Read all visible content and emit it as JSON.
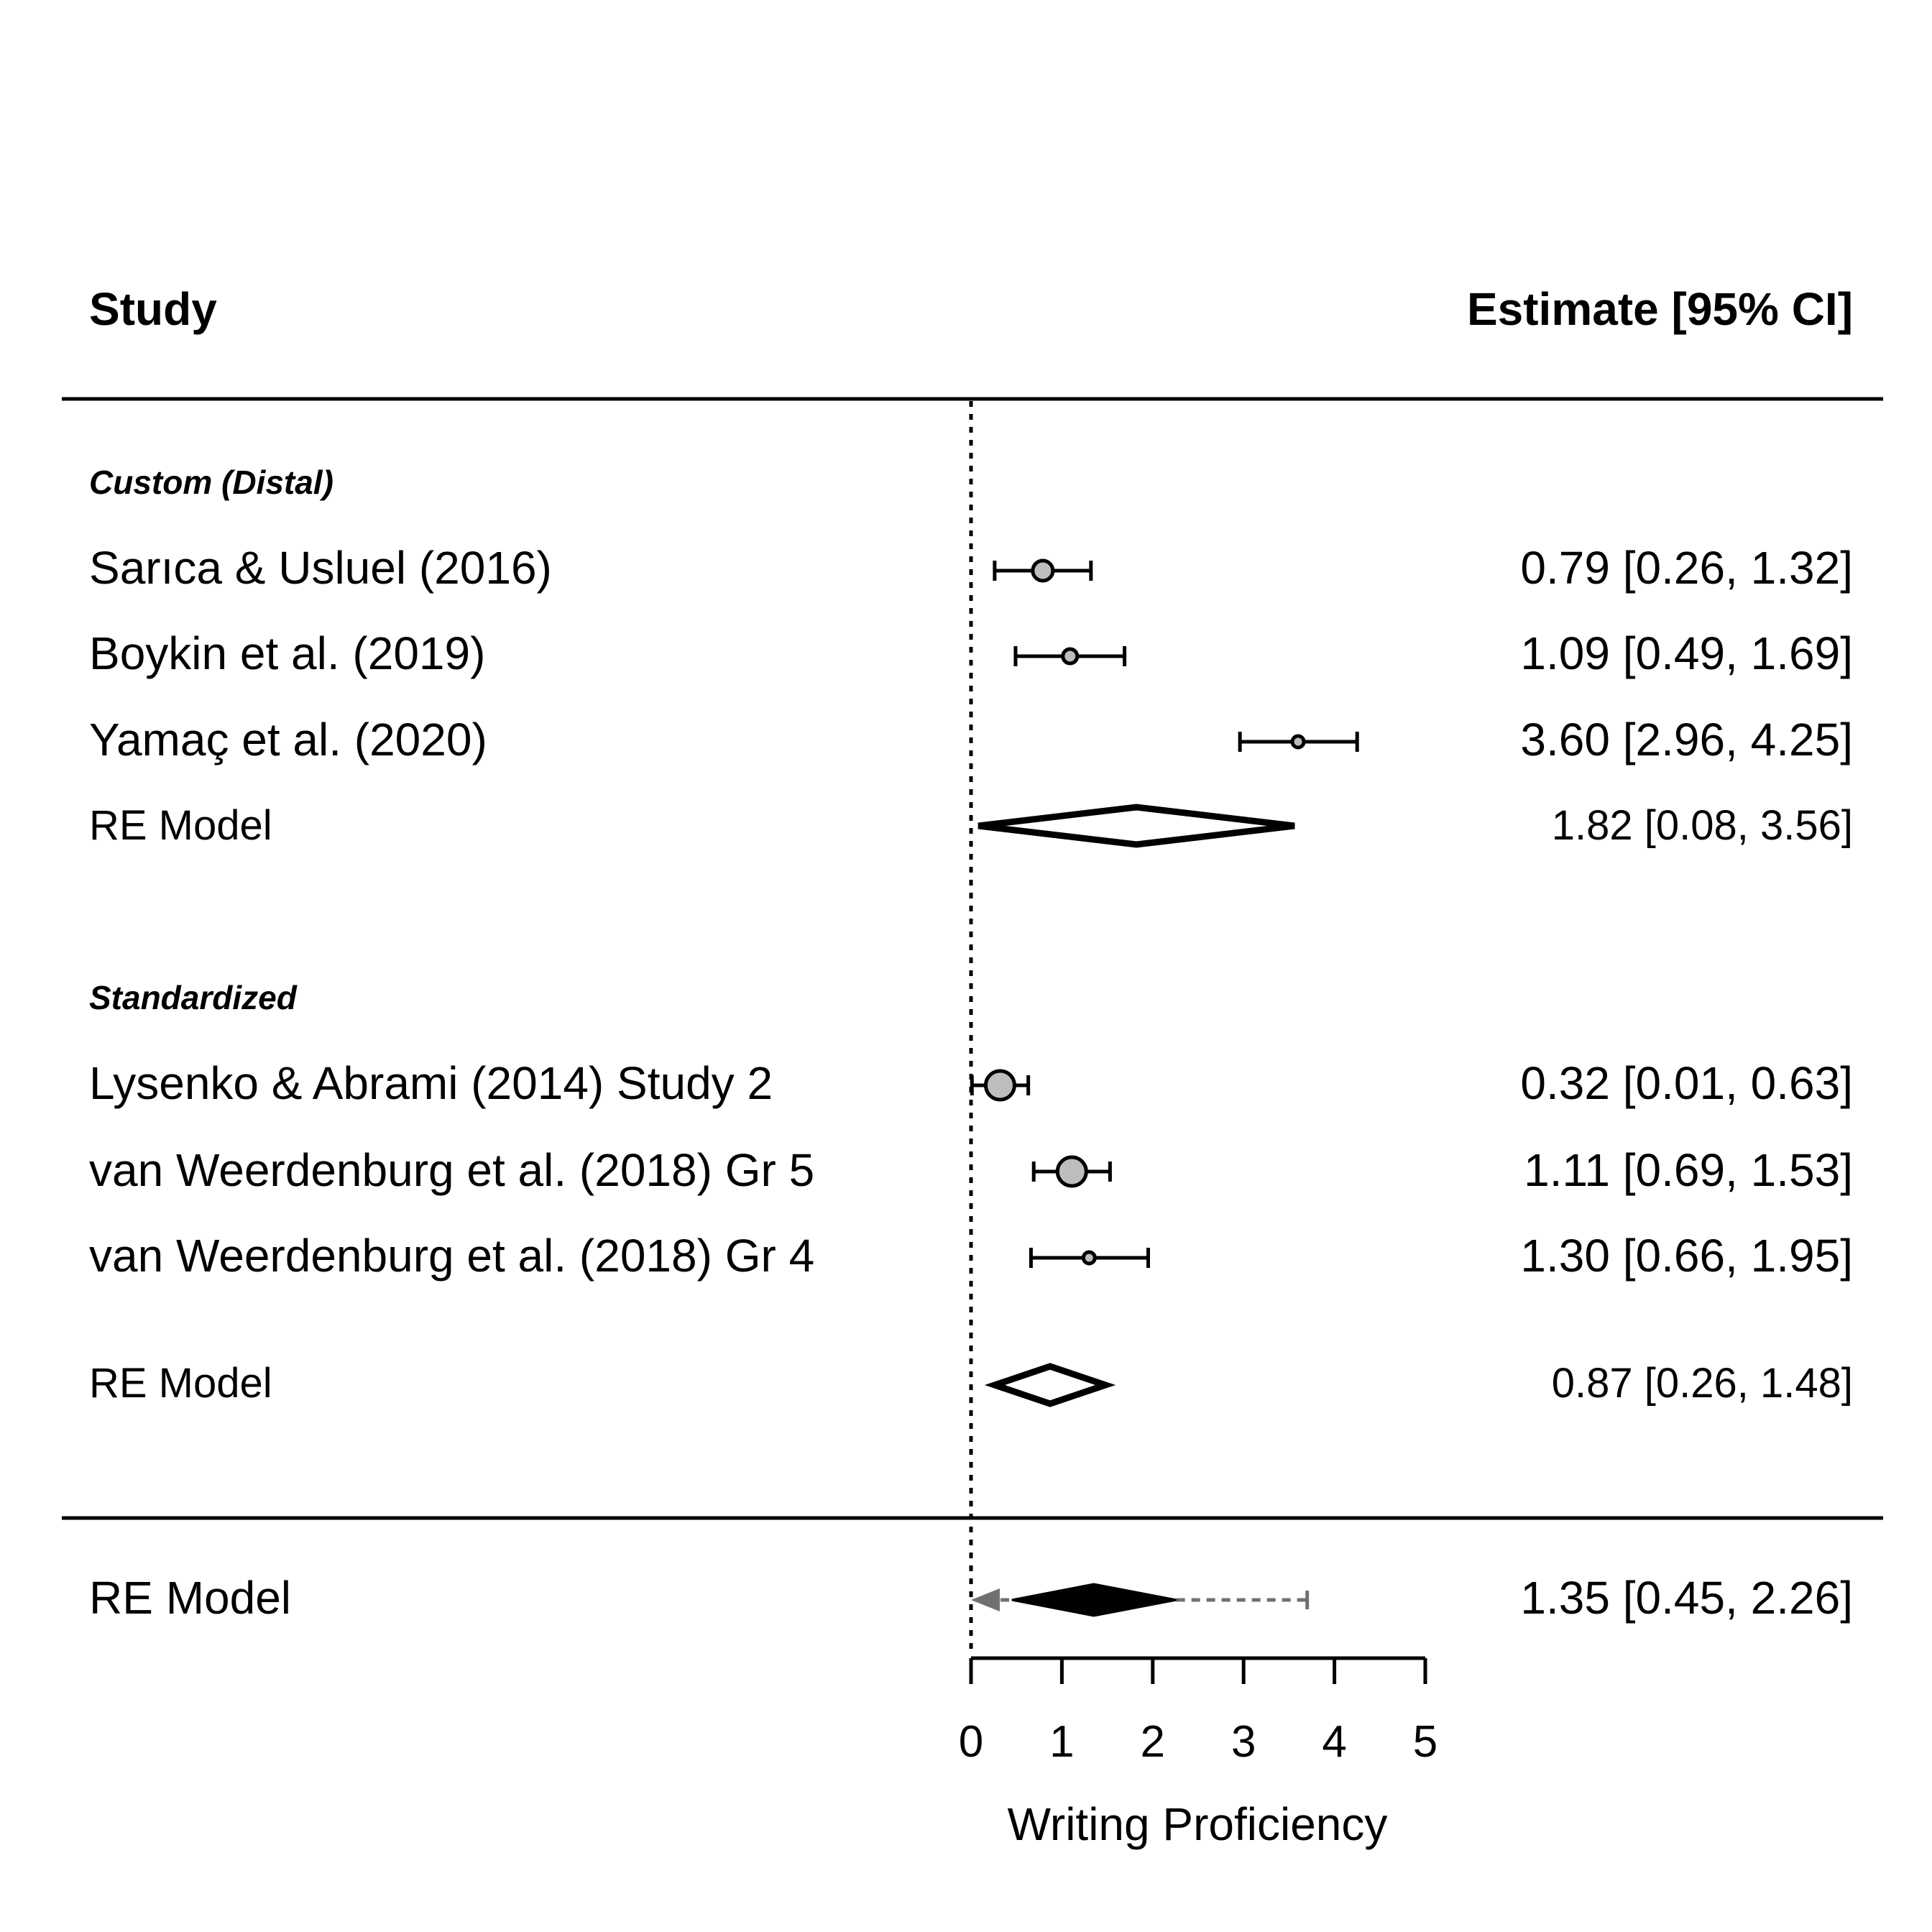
{
  "chart_data": {
    "type": "forest",
    "headers": {
      "study": "Study",
      "estimate": "Estimate [95% CI]"
    },
    "groups": [
      {
        "label": "Custom (Distal)",
        "studies": [
          {
            "name": "Sarıca & Usluel (2016)",
            "estimate": 0.79,
            "lower": 0.26,
            "upper": 1.32,
            "text": "0.79 [0.26, 1.32]",
            "marker_size": "medium"
          },
          {
            "name": "Boykin et al. (2019)",
            "estimate": 1.09,
            "lower": 0.49,
            "upper": 1.69,
            "text": "1.09 [0.49, 1.69]",
            "marker_size": "small"
          },
          {
            "name": "Yamaç et al. (2020)",
            "estimate": 3.6,
            "lower": 2.96,
            "upper": 4.25,
            "text": "3.60 [2.96, 4.25]",
            "marker_size": "tiny"
          }
        ],
        "model": {
          "name": "RE Model",
          "estimate": 1.82,
          "lower": 0.08,
          "upper": 3.56,
          "text": "1.82 [0.08, 3.56]"
        }
      },
      {
        "label": "Standardized",
        "studies": [
          {
            "name": "Lysenko & Abrami (2014) Study 2",
            "estimate": 0.32,
            "lower": 0.01,
            "upper": 0.63,
            "text": "0.32 [0.01, 0.63]",
            "marker_size": "large"
          },
          {
            "name": "van Weerdenburg et al. (2018) Gr 5",
            "estimate": 1.11,
            "lower": 0.69,
            "upper": 1.53,
            "text": "1.11 [0.69, 1.53]",
            "marker_size": "large"
          },
          {
            "name": "van Weerdenburg et al. (2018) Gr 4",
            "estimate": 1.3,
            "lower": 0.66,
            "upper": 1.95,
            "text": "1.30 [0.66, 1.95]",
            "marker_size": "tiny"
          }
        ],
        "model": {
          "name": "RE Model",
          "estimate": 0.87,
          "lower": 0.26,
          "upper": 1.48,
          "text": "0.87 [0.26, 1.48]"
        }
      }
    ],
    "overall": {
      "name": "RE Model",
      "estimate": 1.35,
      "lower": 0.45,
      "upper": 2.26,
      "text": "1.35 [0.45, 2.26]",
      "pi_lower": 0.0,
      "pi_upper": 3.7
    },
    "xlabel": "Writing Proficiency",
    "xlim": [
      0,
      5
    ],
    "xticks": [
      "0",
      "1",
      "2",
      "3",
      "4",
      "5"
    ],
    "reference_line": 0,
    "colors": {
      "marker_fill": "#bdbdbd",
      "line": "#000000",
      "prediction_interval": "#707070"
    }
  }
}
